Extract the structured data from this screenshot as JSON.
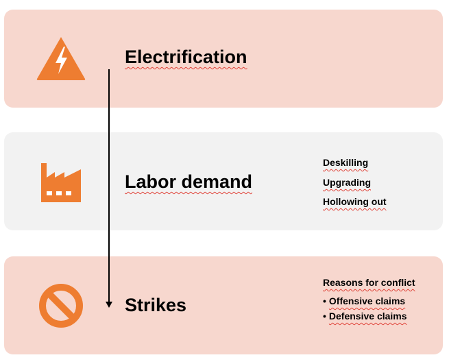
{
  "colors": {
    "panel_pink": "#f7d7ce",
    "panel_gray": "#f2f2f2",
    "icon_orange": "#ee7d31",
    "arrow": "#000000",
    "squiggle": "#e0443a"
  },
  "rows": [
    {
      "title": "Electrification",
      "icon": "lightning-warning-icon",
      "notes": []
    },
    {
      "title": "Labor demand",
      "icon": "factory-icon",
      "notes": [
        "Deskilling",
        "Upgrading",
        "Hollowing out"
      ]
    },
    {
      "title": "Strikes",
      "icon": "prohibited-icon",
      "notes_heading": "Reasons for conflict",
      "bullets": [
        "Offensive claims",
        "Defensive claims"
      ],
      "bullet_char": "•"
    }
  ]
}
